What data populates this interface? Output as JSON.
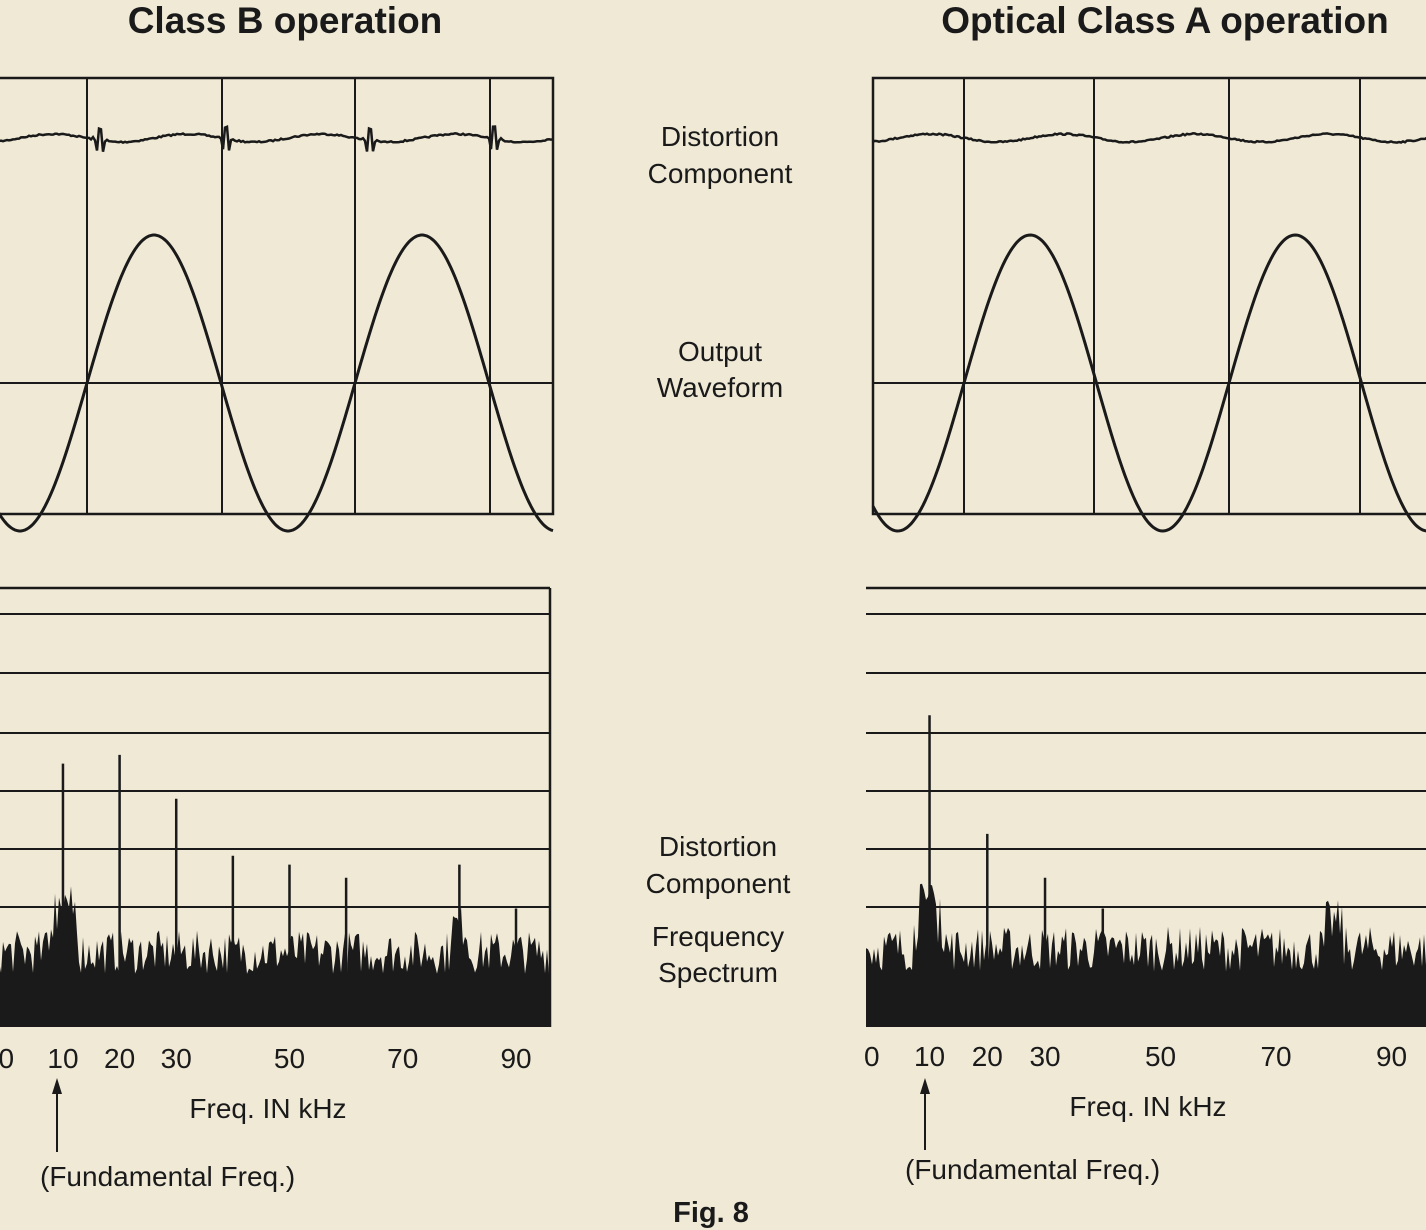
{
  "titles": {
    "left": "Class B operation",
    "right": "Optical Class A operation"
  },
  "middle_labels": {
    "distortion_line1": "Distortion",
    "distortion_line2": "Component",
    "output_line1": "Output",
    "output_line2": "Waveform",
    "spectrum_line1": "Distortion",
    "spectrum_line2": "Component",
    "spectrum_line3": "Frequency",
    "spectrum_line4": "Spectrum"
  },
  "axis": {
    "xlabel": "Freq. IN kHz",
    "fundamental_note": "(Fundamental Freq.)"
  },
  "fig_caption": "Fig. 8",
  "colors": {
    "paper": "#efe9d6",
    "ink": "#1a1a1a"
  },
  "chart_data": [
    {
      "type": "line",
      "panel": "class-b-waveform",
      "series": [
        {
          "name": "Distortion Component",
          "shape": "flat with glitches at zero crossings"
        },
        {
          "name": "Output Waveform",
          "shape": "sine",
          "cycles": 2
        }
      ],
      "grid": true
    },
    {
      "type": "line",
      "panel": "class-a-waveform",
      "series": [
        {
          "name": "Distortion Component",
          "shape": "flat"
        },
        {
          "name": "Output Waveform",
          "shape": "sine",
          "cycles": 2
        }
      ],
      "grid": true
    },
    {
      "type": "bar",
      "panel": "class-b-spectrum",
      "x_ticks": [
        0,
        10,
        20,
        30,
        50,
        70,
        90
      ],
      "xlabel": "Freq. IN kHz",
      "xlim": [
        -2,
        96
      ],
      "ylim": [
        0,
        1
      ],
      "lines": [
        {
          "x": 10,
          "y": 0.6
        },
        {
          "x": 20,
          "y": 0.62
        },
        {
          "x": 30,
          "y": 0.52
        },
        {
          "x": 40,
          "y": 0.39
        },
        {
          "x": 50,
          "y": 0.37
        },
        {
          "x": 60,
          "y": 0.34
        },
        {
          "x": 80,
          "y": 0.37
        },
        {
          "x": 90,
          "y": 0.27
        }
      ],
      "noise_floor": 0.22,
      "grid": true
    },
    {
      "type": "bar",
      "panel": "class-a-spectrum",
      "x_ticks": [
        0,
        10,
        20,
        30,
        50,
        70,
        90
      ],
      "xlabel": "Freq. IN kHz",
      "xlim": [
        -1,
        97
      ],
      "ylim": [
        0,
        1
      ],
      "lines": [
        {
          "x": 10,
          "y": 0.71
        },
        {
          "x": 20,
          "y": 0.44
        },
        {
          "x": 30,
          "y": 0.34
        },
        {
          "x": 40,
          "y": 0.27
        }
      ],
      "noise_floor": 0.23,
      "grid": true
    }
  ]
}
